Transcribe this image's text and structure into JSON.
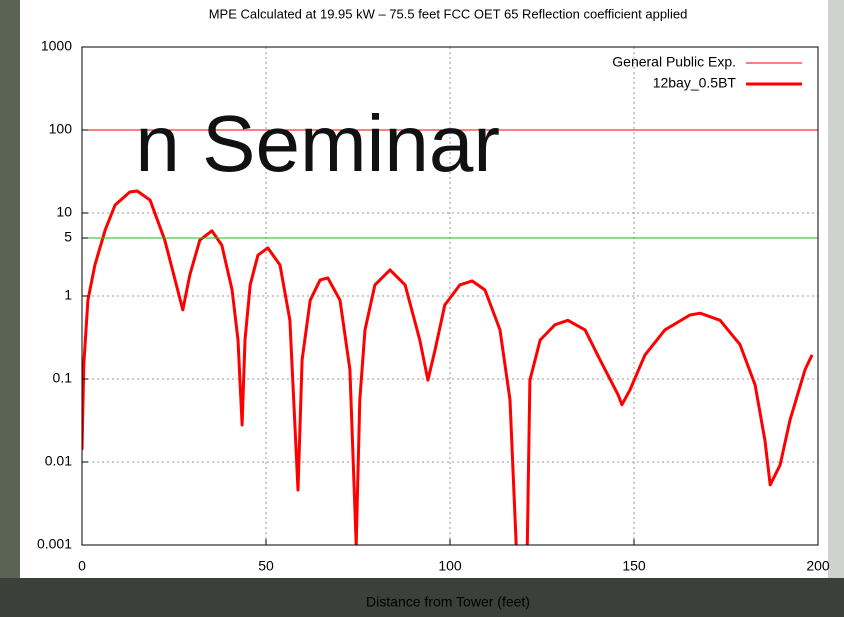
{
  "chart_data": {
    "type": "line",
    "title": "MPE Calculated at 19.95 kW – 75.5 feet  FCC OET 65 Reflection coefficient applied",
    "xlabel": "Distance from Tower (feet)",
    "overlay_text": "n Seminar",
    "log_y": true,
    "grid": true,
    "legend": "top-right",
    "xlim": [
      0,
      200
    ],
    "xticks": [
      0,
      50,
      100,
      150,
      200
    ],
    "ylim": [
      0.001,
      1000
    ],
    "yticks": [
      0.001,
      0.01,
      0.1,
      1,
      5,
      10,
      100,
      1000
    ],
    "series": [
      {
        "name": "General Public Exp.",
        "color": "#ff0000",
        "width": 1,
        "x": [
          0,
          200
        ],
        "values": [
          100,
          100
        ]
      },
      {
        "name": "12bay_0.5BT",
        "color": "#ff0000",
        "width": 3,
        "x": [
          0,
          0.5,
          1.6,
          3.5,
          6.3,
          9,
          13,
          15,
          18.5,
          22.5,
          25.3,
          27.4,
          29.3,
          32,
          35.3,
          38,
          40.8,
          42.4,
          43.5,
          44.3,
          45.7,
          47.8,
          50.5,
          53.8,
          56.5,
          58.7,
          59.8,
          62,
          64.7,
          66.8,
          70.1,
          72.8,
          74.5,
          75.5,
          76.9,
          79.6,
          83.7,
          87.8,
          91.8,
          94,
          95.9,
          98.6,
          102.7,
          106,
          109.5,
          113.6,
          116.3,
          118,
          119.5,
          121,
          121.7,
          124.5,
          128.5,
          132,
          136.7,
          140.8,
          145.7,
          146.7,
          148.9,
          153,
          158.4,
          165.2,
          168,
          173.4,
          178.8,
          182.9,
          185.6,
          187,
          189.7,
          192.4,
          196.5,
          198.4
        ],
        "values": [
          0.014,
          0.15,
          0.89,
          2.36,
          6.25,
          12.5,
          17.9,
          18.4,
          14.3,
          4.7,
          1.56,
          0.68,
          1.79,
          4.7,
          6.1,
          4.1,
          1.18,
          0.295,
          0.028,
          0.295,
          1.36,
          3.1,
          3.8,
          2.36,
          0.51,
          0.0046,
          0.17,
          0.89,
          1.56,
          1.65,
          0.89,
          0.13,
          0.001,
          0.056,
          0.39,
          1.36,
          2.06,
          1.36,
          0.295,
          0.097,
          0.22,
          0.78,
          1.36,
          1.52,
          1.18,
          0.39,
          0.056,
          0.001,
          null,
          0.001,
          0.097,
          0.295,
          0.45,
          0.51,
          0.39,
          0.17,
          0.064,
          0.049,
          0.074,
          0.195,
          0.39,
          0.59,
          0.62,
          0.51,
          0.26,
          0.085,
          0.018,
          0.0053,
          0.0092,
          0.032,
          0.13,
          0.195
        ]
      },
      {
        "color": "#22bb22",
        "width": 1,
        "x": [
          0,
          200
        ],
        "values": [
          5,
          5
        ]
      }
    ]
  }
}
